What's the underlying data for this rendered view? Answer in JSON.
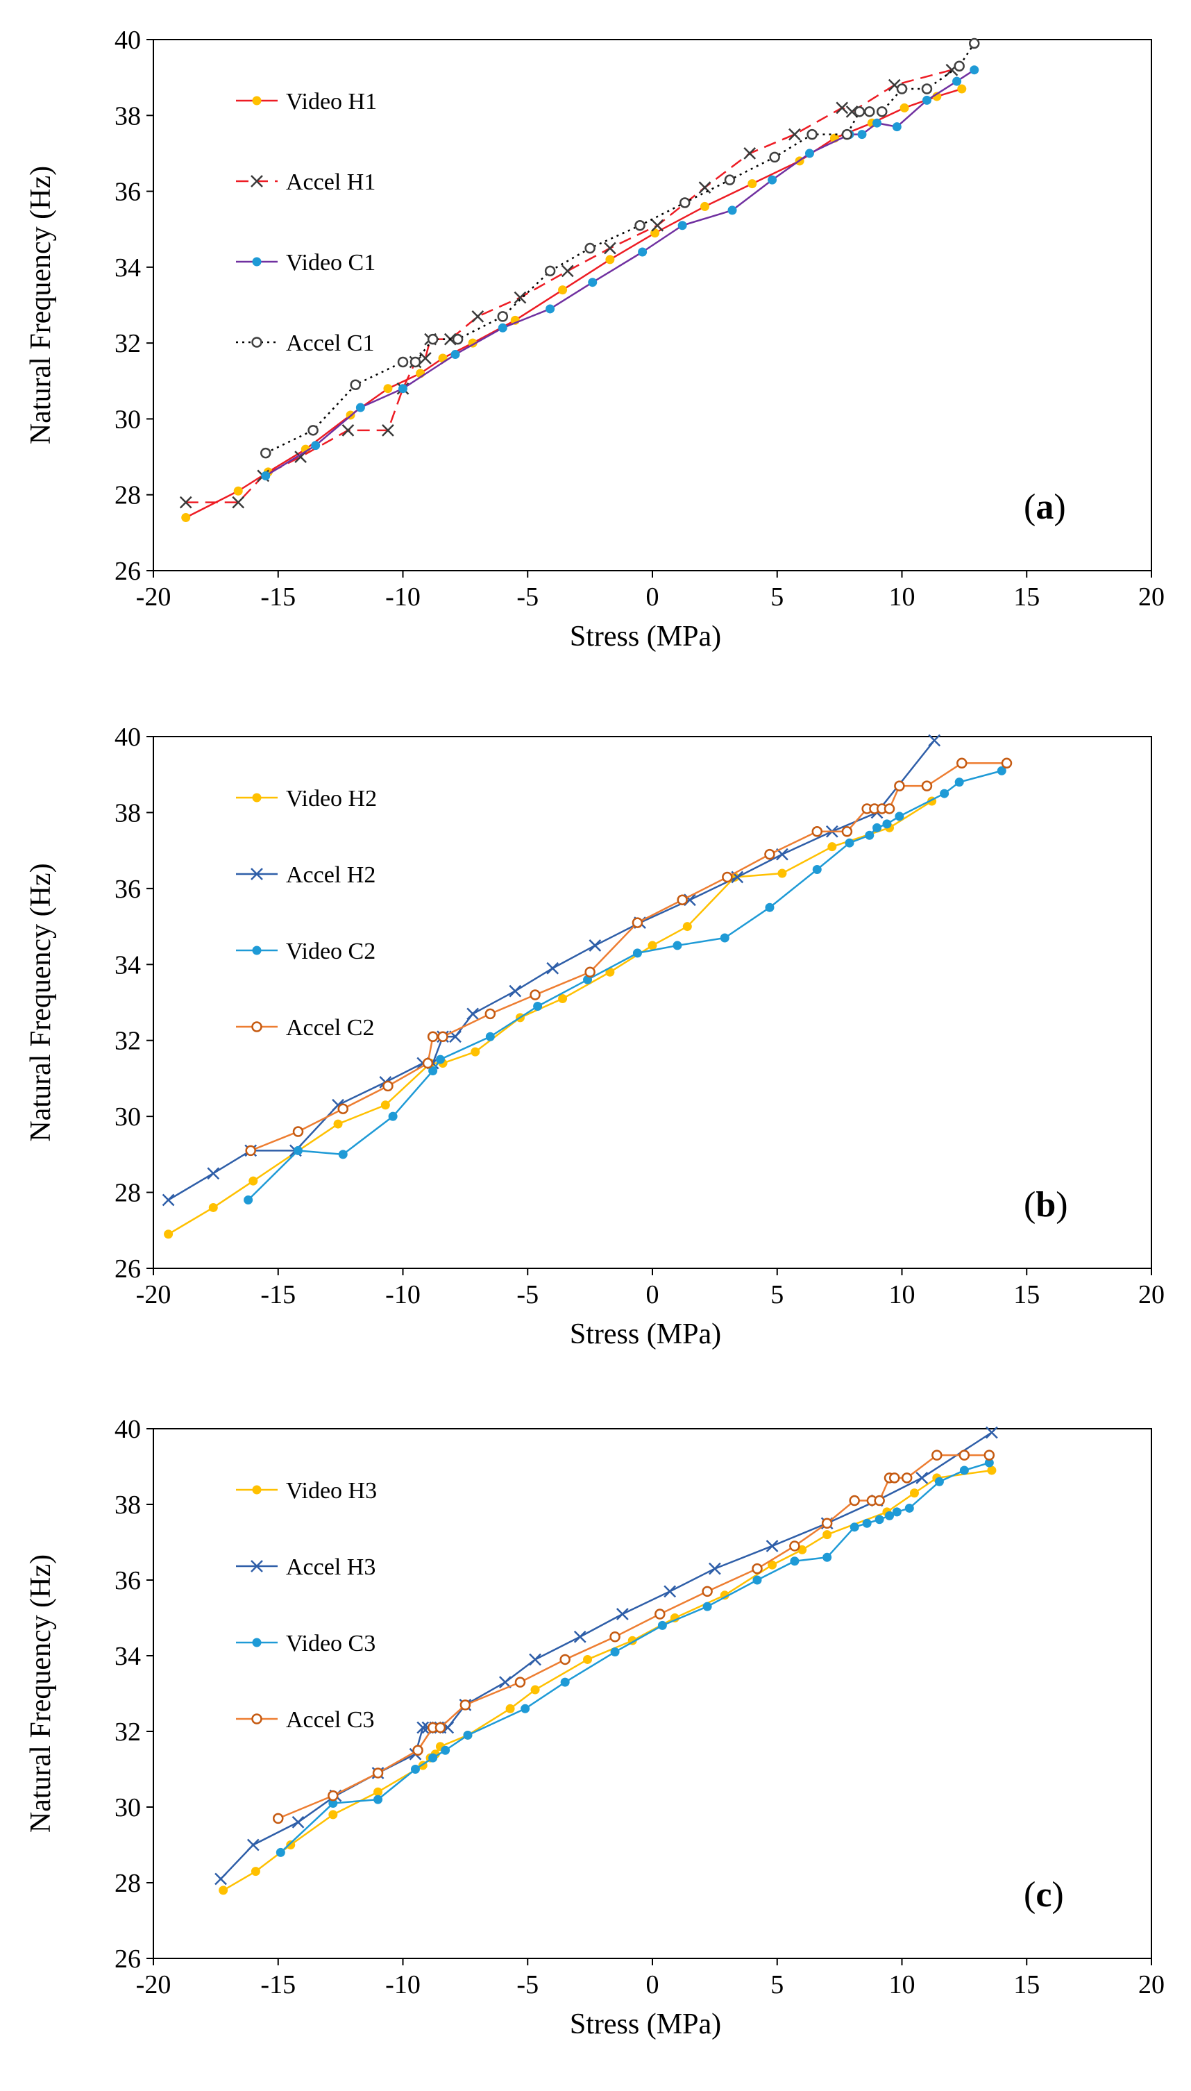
{
  "chart_data": [
    {
      "type": "line",
      "panel_label": "(a)",
      "panel_letter": "a",
      "xlabel": "Stress (MPa)",
      "ylabel": "Natural Frequency (Hz)",
      "xlim": [
        -20,
        20
      ],
      "ylim": [
        26,
        40
      ],
      "xticks": [
        -20,
        -15,
        -10,
        -5,
        0,
        5,
        10,
        15,
        20
      ],
      "yticks": [
        26,
        28,
        30,
        32,
        34,
        36,
        38,
        40
      ],
      "grid": false,
      "legend_position": "top-left",
      "series": [
        {
          "name": "Video H1",
          "color": "#ed1c24",
          "dash": "solid",
          "marker": "dot",
          "marker_color": "#ffc000",
          "x": [
            -18.7,
            -16.6,
            -15.4,
            -13.9,
            -12.1,
            -10.6,
            -9.3,
            -8.4,
            -7.2,
            -5.5,
            -3.6,
            -1.7,
            0.1,
            2.1,
            4.0,
            5.9,
            7.3,
            8.8,
            10.1,
            11.4,
            12.4
          ],
          "y": [
            27.4,
            28.1,
            28.6,
            29.2,
            30.1,
            30.8,
            31.2,
            31.6,
            32.0,
            32.6,
            33.4,
            34.2,
            34.9,
            35.6,
            36.2,
            36.8,
            37.4,
            37.8,
            38.2,
            38.5,
            38.7
          ]
        },
        {
          "name": "Accel H1",
          "color": "#ed1c24",
          "dash": "dashed",
          "marker": "x",
          "marker_color": "#3a3a3a",
          "x": [
            -18.7,
            -16.6,
            -15.6,
            -14.1,
            -12.2,
            -10.6,
            -10.0,
            -9.5,
            -9.1,
            -8.9,
            -8.1,
            -7.0,
            -5.3,
            -3.4,
            -1.7,
            0.2,
            2.1,
            3.9,
            5.7,
            7.6,
            8.0,
            9.7,
            12.0
          ],
          "y": [
            27.8,
            27.8,
            28.5,
            29.0,
            29.7,
            29.7,
            30.8,
            31.5,
            31.6,
            32.1,
            32.1,
            32.7,
            33.2,
            33.9,
            34.5,
            35.1,
            36.1,
            37.0,
            37.5,
            38.2,
            38.1,
            38.8,
            39.2
          ]
        },
        {
          "name": "Video C1",
          "color": "#7030a0",
          "dash": "solid",
          "marker": "dot",
          "marker_color": "#1e9ad6",
          "x": [
            -15.5,
            -13.5,
            -11.7,
            -10.0,
            -7.9,
            -6.0,
            -4.1,
            -2.4,
            -0.4,
            1.2,
            3.2,
            4.8,
            6.3,
            7.9,
            8.4,
            9.0,
            9.8,
            11.0,
            12.2,
            12.9
          ],
          "y": [
            28.5,
            29.3,
            30.3,
            30.8,
            31.7,
            32.4,
            32.9,
            33.6,
            34.4,
            35.1,
            35.5,
            36.3,
            37.0,
            37.5,
            37.5,
            37.8,
            37.7,
            38.4,
            38.9,
            39.2
          ]
        },
        {
          "name": "Accel C1",
          "color": "#000000",
          "dash": "dotted",
          "marker": "circle",
          "marker_color": "#404040",
          "x": [
            -15.5,
            -13.6,
            -11.9,
            -10.0,
            -9.5,
            -8.8,
            -7.8,
            -6.0,
            -4.1,
            -2.5,
            -0.5,
            1.3,
            3.1,
            4.9,
            6.4,
            7.8,
            8.3,
            8.7,
            9.2,
            10.0,
            11.0,
            12.3,
            12.9
          ],
          "y": [
            29.1,
            29.7,
            30.9,
            31.5,
            31.5,
            32.1,
            32.1,
            32.7,
            33.9,
            34.5,
            35.1,
            35.7,
            36.3,
            36.9,
            37.5,
            37.5,
            38.1,
            38.1,
            38.1,
            38.7,
            38.7,
            39.3,
            39.9
          ]
        }
      ]
    },
    {
      "type": "line",
      "panel_label": "(b)",
      "panel_letter": "b",
      "xlabel": "Stress (MPa)",
      "ylabel": "Natural Frequency (Hz)",
      "xlim": [
        -20,
        20
      ],
      "ylim": [
        26,
        40
      ],
      "xticks": [
        -20,
        -15,
        -10,
        -5,
        0,
        5,
        10,
        15,
        20
      ],
      "yticks": [
        26,
        28,
        30,
        32,
        34,
        36,
        38,
        40
      ],
      "grid": false,
      "legend_position": "top-left",
      "series": [
        {
          "name": "Video H2",
          "color": "#ffc000",
          "dash": "solid",
          "marker": "dot",
          "marker_color": "#ffc000",
          "x": [
            -19.4,
            -17.6,
            -16.0,
            -12.6,
            -10.7,
            -8.9,
            -8.4,
            -7.1,
            -5.3,
            -3.6,
            -1.7,
            0.0,
            1.4,
            3.3,
            5.2,
            7.2,
            9.5,
            11.2
          ],
          "y": [
            26.9,
            27.6,
            28.3,
            29.8,
            30.3,
            31.4,
            31.4,
            31.7,
            32.6,
            33.1,
            33.8,
            34.5,
            35.0,
            36.3,
            36.4,
            37.1,
            37.6,
            38.3
          ]
        },
        {
          "name": "Accel H2",
          "color": "#2e5ea8",
          "dash": "solid",
          "marker": "x",
          "marker_color": "#2e5ea8",
          "x": [
            -19.4,
            -17.6,
            -16.1,
            -14.3,
            -12.6,
            -10.7,
            -9.2,
            -8.8,
            -8.4,
            -7.9,
            -7.2,
            -5.5,
            -4.0,
            -2.3,
            -0.5,
            1.5,
            3.4,
            5.2,
            7.2,
            9.0,
            11.3
          ],
          "y": [
            27.8,
            28.5,
            29.1,
            29.1,
            30.3,
            30.9,
            31.4,
            31.4,
            32.1,
            32.1,
            32.7,
            33.3,
            33.9,
            34.5,
            35.1,
            35.7,
            36.3,
            36.9,
            37.5,
            38.0,
            39.9
          ]
        },
        {
          "name": "Video C2",
          "color": "#1e9ad6",
          "dash": "solid",
          "marker": "dot",
          "marker_color": "#1e9ad6",
          "x": [
            -16.2,
            -14.2,
            -12.4,
            -10.4,
            -8.8,
            -8.5,
            -6.5,
            -4.6,
            -2.6,
            -0.6,
            1.0,
            2.9,
            4.7,
            6.6,
            7.9,
            8.7,
            9.0,
            9.4,
            9.9,
            11.7,
            12.3,
            14.0
          ],
          "y": [
            27.8,
            29.1,
            29.0,
            30.0,
            31.2,
            31.5,
            32.1,
            32.9,
            33.6,
            34.3,
            34.5,
            34.7,
            35.5,
            36.5,
            37.2,
            37.4,
            37.6,
            37.7,
            37.9,
            38.5,
            38.8,
            39.1
          ]
        },
        {
          "name": "Accel C2",
          "color": "#ed7d31",
          "dash": "solid",
          "marker": "circle",
          "marker_color": "#c55a11",
          "x": [
            -16.1,
            -14.2,
            -12.4,
            -10.6,
            -9.0,
            -8.8,
            -8.4,
            -6.5,
            -4.7,
            -2.5,
            -0.6,
            1.2,
            3.0,
            4.7,
            6.6,
            7.8,
            8.6,
            8.9,
            9.2,
            9.5,
            9.9,
            11.0,
            12.4,
            14.2
          ],
          "y": [
            29.1,
            29.6,
            30.2,
            30.8,
            31.4,
            32.1,
            32.1,
            32.7,
            33.2,
            33.8,
            35.1,
            35.7,
            36.3,
            36.9,
            37.5,
            37.5,
            38.1,
            38.1,
            38.1,
            38.1,
            38.7,
            38.7,
            39.3,
            39.3
          ]
        }
      ]
    },
    {
      "type": "line",
      "panel_label": "(c)",
      "panel_letter": "c",
      "xlabel": "Stress (MPa)",
      "ylabel": "Natural Frequency (Hz)",
      "xlim": [
        -20,
        20
      ],
      "ylim": [
        26,
        40
      ],
      "xticks": [
        -20,
        -15,
        -10,
        -5,
        0,
        5,
        10,
        15,
        20
      ],
      "yticks": [
        26,
        28,
        30,
        32,
        34,
        36,
        38,
        40
      ],
      "grid": false,
      "legend_position": "top-left",
      "series": [
        {
          "name": "Video H3",
          "color": "#ffc000",
          "dash": "solid",
          "marker": "dot",
          "marker_color": "#ffc000",
          "x": [
            -17.2,
            -15.9,
            -14.5,
            -12.8,
            -11.0,
            -9.2,
            -8.9,
            -8.7,
            -8.5,
            -7.4,
            -5.7,
            -4.7,
            -2.6,
            -0.8,
            0.9,
            2.9,
            4.8,
            6.0,
            7.0,
            9.4,
            10.5,
            11.4,
            13.6
          ],
          "y": [
            27.8,
            28.3,
            29.0,
            29.8,
            30.4,
            31.1,
            31.3,
            31.4,
            31.6,
            31.9,
            32.6,
            33.1,
            33.9,
            34.4,
            35.0,
            35.6,
            36.4,
            36.8,
            37.2,
            37.8,
            38.3,
            38.7,
            38.9
          ]
        },
        {
          "name": "Accel H3",
          "color": "#2e5ea8",
          "dash": "solid",
          "marker": "x",
          "marker_color": "#2e5ea8",
          "x": [
            -17.3,
            -16.0,
            -14.2,
            -12.7,
            -11.0,
            -9.5,
            -9.2,
            -9.0,
            -8.7,
            -8.5,
            -8.2,
            -7.5,
            -5.9,
            -4.7,
            -2.9,
            -1.2,
            0.7,
            2.5,
            4.8,
            7.0,
            9.0,
            10.8,
            13.6
          ],
          "y": [
            28.1,
            29.0,
            29.6,
            30.3,
            30.9,
            31.4,
            32.1,
            32.1,
            32.1,
            32.1,
            32.1,
            32.7,
            33.3,
            33.9,
            34.5,
            35.1,
            35.7,
            36.3,
            36.9,
            37.5,
            38.1,
            38.7,
            39.9
          ]
        },
        {
          "name": "Video C3",
          "color": "#1e9ad6",
          "dash": "solid",
          "marker": "dot",
          "marker_color": "#1e9ad6",
          "x": [
            -14.9,
            -12.8,
            -11.0,
            -9.5,
            -8.8,
            -8.3,
            -7.4,
            -5.1,
            -3.5,
            -1.5,
            0.4,
            2.2,
            4.2,
            5.7,
            7.0,
            8.1,
            8.6,
            9.1,
            9.5,
            9.8,
            10.3,
            11.5,
            12.5,
            13.5
          ],
          "y": [
            28.8,
            30.1,
            30.2,
            31.0,
            31.3,
            31.5,
            31.9,
            32.6,
            33.3,
            34.1,
            34.8,
            35.3,
            36.0,
            36.5,
            36.6,
            37.4,
            37.5,
            37.6,
            37.7,
            37.8,
            37.9,
            38.6,
            38.9,
            39.1
          ]
        },
        {
          "name": "Accel C3",
          "color": "#ed7d31",
          "dash": "solid",
          "marker": "circle",
          "marker_color": "#c55a11",
          "x": [
            -15.0,
            -12.8,
            -11.0,
            -9.4,
            -8.8,
            -8.5,
            -7.5,
            -5.3,
            -3.5,
            -1.5,
            0.3,
            2.2,
            4.2,
            5.7,
            7.0,
            8.1,
            8.8,
            9.1,
            9.5,
            9.7,
            10.2,
            11.4,
            12.5,
            13.5
          ],
          "y": [
            29.7,
            30.3,
            30.9,
            31.5,
            32.1,
            32.1,
            32.7,
            33.3,
            33.9,
            34.5,
            35.1,
            35.7,
            36.3,
            36.9,
            37.5,
            38.1,
            38.1,
            38.1,
            38.7,
            38.7,
            38.7,
            39.3,
            39.3,
            39.3
          ]
        }
      ]
    }
  ]
}
